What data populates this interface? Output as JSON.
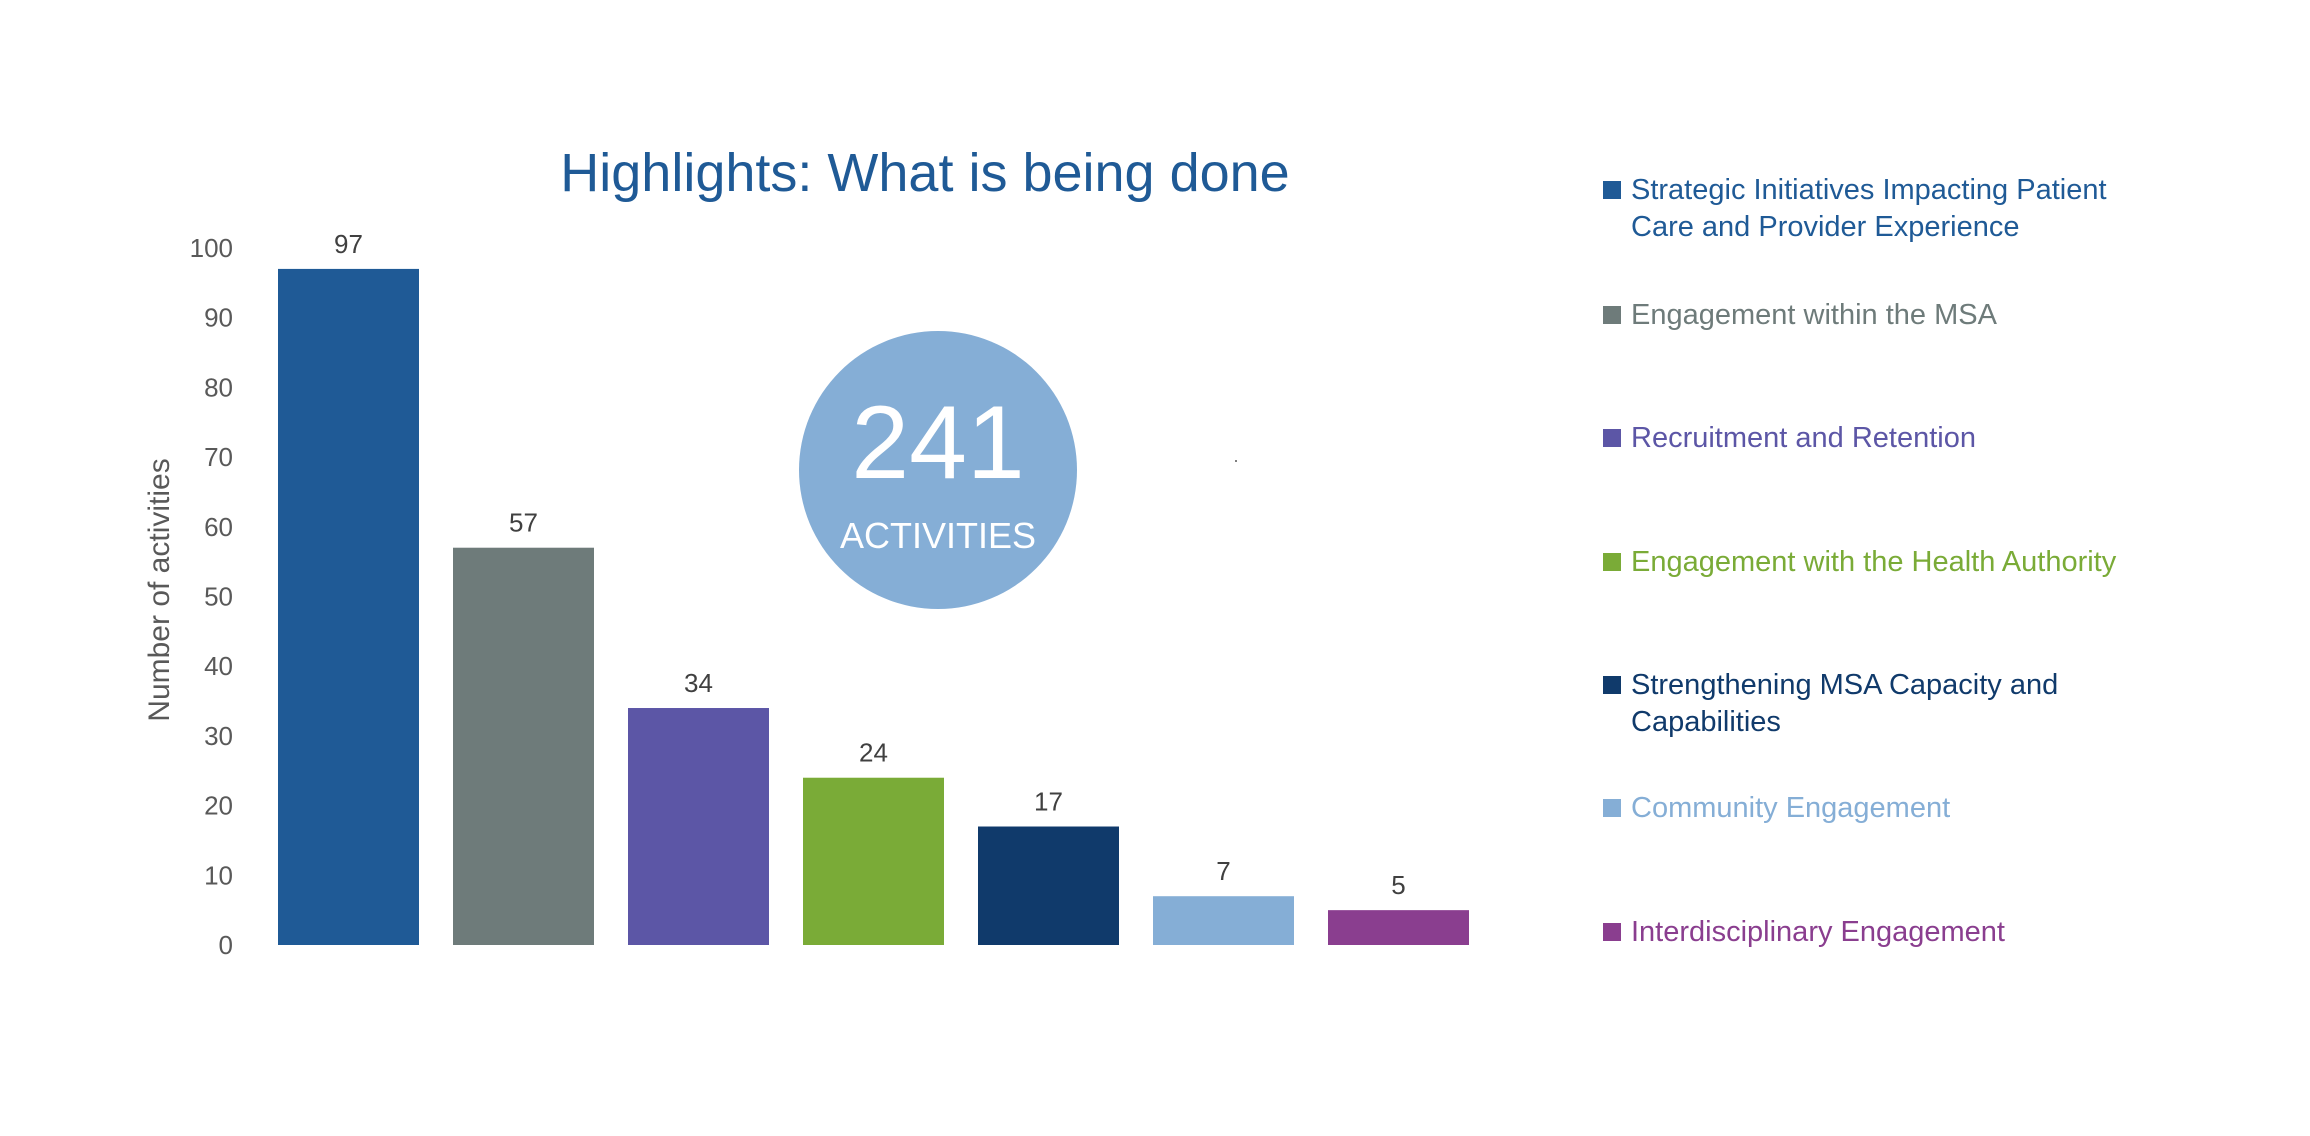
{
  "chart_data": {
    "type": "bar",
    "title": "Highlights: What is being done",
    "ylabel": "Number of activities",
    "xlabel": "",
    "ylim": [
      0,
      100
    ],
    "yticks": [
      0,
      10,
      20,
      30,
      40,
      50,
      60,
      70,
      80,
      90,
      100
    ],
    "grid": false,
    "legend_position": "right",
    "categories": [
      "Strategic Initiatives Impacting Patient Care and Provider Experience",
      "Engagement within the MSA",
      "Recruitment and Retention",
      "Engagement with the Health Authority",
      "Strengthening MSA Capacity and Capabilities",
      "Community Engagement",
      "Interdisciplinary Engagement"
    ],
    "values": [
      97,
      57,
      34,
      24,
      17,
      7,
      5
    ],
    "colors": [
      "#1F5A96",
      "#6E7B7A",
      "#5C56A6",
      "#7AAB37",
      "#103A6B",
      "#85AED6",
      "#8A3E8F"
    ],
    "data_labels": true
  },
  "badge": {
    "number": "241",
    "label": "ACTIVITIES"
  }
}
